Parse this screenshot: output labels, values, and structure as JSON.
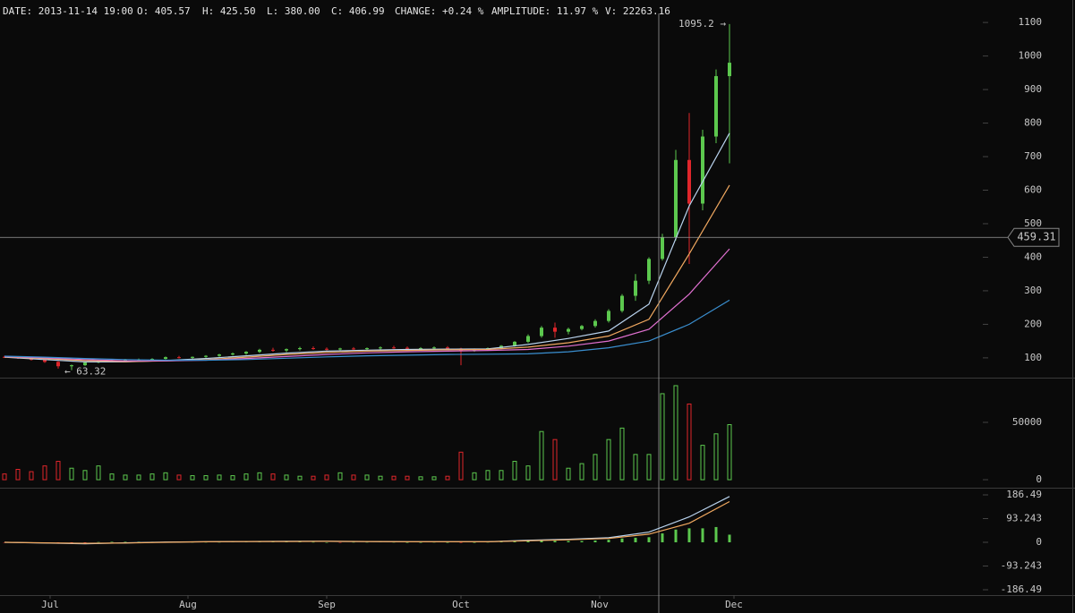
{
  "header": {
    "fields": [
      "DATE: 2013-11-14 19:00",
      "O: 405.57",
      "H: 425.50",
      "L: 380.00",
      "C: 406.99",
      "CHANGE: +0.24 %",
      "AMPLITUDE: 11.97 %",
      "V: 22263.16"
    ]
  },
  "chart_data": [
    {
      "type": "candlestick",
      "x": [
        0,
        3,
        6,
        9,
        12,
        15,
        18,
        21,
        24,
        27,
        30,
        33,
        36,
        39,
        42,
        45,
        48,
        51,
        54,
        57,
        60,
        63,
        66,
        69,
        72,
        75,
        78,
        81,
        84,
        87,
        90,
        93,
        96,
        99,
        102,
        105,
        108,
        111,
        114,
        117,
        120,
        123,
        126,
        129,
        132,
        135,
        138,
        141,
        144,
        147,
        150,
        153,
        156,
        159,
        162
      ],
      "open": [
        103,
        102,
        99,
        94,
        88,
        75,
        78,
        86,
        91,
        93,
        94,
        95,
        97,
        102,
        100,
        103,
        106,
        110,
        113,
        118,
        124,
        122,
        126,
        129,
        127,
        125,
        128,
        126,
        129,
        131,
        130,
        127,
        129,
        131,
        128,
        122,
        125,
        129,
        136,
        148,
        165,
        190,
        178,
        186,
        195,
        210,
        240,
        285,
        330,
        395,
        460,
        690,
        560,
        760,
        940
      ],
      "high": [
        106,
        104,
        101,
        96,
        90,
        80,
        88,
        94,
        96,
        97,
        98,
        99,
        104,
        106,
        104,
        108,
        112,
        116,
        120,
        127,
        130,
        128,
        133,
        134,
        131,
        130,
        132,
        131,
        134,
        136,
        134,
        132,
        134,
        135,
        130,
        128,
        131,
        138,
        150,
        170,
        195,
        205,
        190,
        198,
        215,
        245,
        290,
        350,
        400,
        470,
        720,
        830,
        780,
        960,
        1095.2
      ],
      "low": [
        100,
        97,
        92,
        85,
        68,
        63.32,
        76,
        84,
        88,
        89,
        90,
        92,
        95,
        98,
        96,
        100,
        103,
        107,
        109,
        114,
        118,
        117,
        122,
        124,
        122,
        120,
        124,
        122,
        125,
        127,
        124,
        122,
        124,
        126,
        78,
        118,
        121,
        126,
        133,
        144,
        160,
        160,
        170,
        182,
        190,
        205,
        235,
        270,
        320,
        390,
        450,
        380,
        540,
        740,
        680
      ],
      "close": [
        102,
        99,
        94,
        88,
        75,
        78,
        86,
        91,
        93,
        94,
        95,
        97,
        102,
        100,
        103,
        106,
        110,
        113,
        118,
        124,
        122,
        126,
        129,
        127,
        125,
        128,
        126,
        129,
        131,
        130,
        127,
        129,
        131,
        128,
        122,
        125,
        129,
        136,
        148,
        165,
        190,
        178,
        186,
        195,
        210,
        240,
        285,
        330,
        395,
        460,
        690,
        560,
        760,
        940,
        980
      ],
      "up_color": "#5cc84e",
      "down_color": "#e0262b",
      "series": [
        {
          "color": "#b9d3ee",
          "x": [
            0,
            9,
            18,
            27,
            36,
            45,
            54,
            63,
            72,
            81,
            90,
            99,
            108,
            117,
            126,
            135,
            144,
            153,
            162
          ],
          "values": [
            102,
            95,
            88,
            88,
            92,
            98,
            106,
            114,
            120,
            123,
            125,
            126,
            127,
            140,
            158,
            180,
            260,
            553,
            770
          ]
        },
        {
          "color": "#f0a860",
          "x": [
            0,
            9,
            18,
            27,
            36,
            45,
            54,
            63,
            72,
            81,
            90,
            99,
            108,
            117,
            126,
            135,
            144,
            153,
            162
          ],
          "values": [
            103,
            98,
            92,
            89,
            91,
            95,
            102,
            110,
            116,
            120,
            122,
            124,
            125,
            132,
            145,
            165,
            215,
            410,
            615
          ]
        },
        {
          "color": "#e070d0",
          "x": [
            0,
            9,
            18,
            27,
            36,
            45,
            54,
            63,
            72,
            81,
            90,
            99,
            108,
            117,
            126,
            135,
            144,
            153,
            162
          ],
          "values": [
            104,
            100,
            95,
            91,
            91,
            93,
            98,
            104,
            110,
            115,
            118,
            120,
            122,
            125,
            135,
            150,
            185,
            290,
            425
          ]
        },
        {
          "color": "#3a8fd0",
          "x": [
            0,
            9,
            18,
            27,
            36,
            45,
            54,
            63,
            72,
            81,
            90,
            99,
            108,
            117,
            126,
            135,
            144,
            153,
            162
          ],
          "values": [
            105,
            102,
            98,
            95,
            93,
            93,
            95,
            99,
            103,
            106,
            108,
            110,
            111,
            112,
            118,
            130,
            150,
            200,
            272
          ]
        }
      ],
      "max_label": "1095.2 →",
      "min_label": "← 63.32",
      "crosshair": {
        "x": 146.2,
        "y": 459.31
      },
      "xlim": [
        -1,
        219
      ],
      "ylim": [
        41,
        1167
      ],
      "yticks": [
        100,
        200,
        300,
        400,
        500,
        600,
        700,
        800,
        900,
        1000,
        1100
      ]
    },
    {
      "type": "bar",
      "x": [
        0,
        3,
        6,
        9,
        12,
        15,
        18,
        21,
        24,
        27,
        30,
        33,
        36,
        39,
        42,
        45,
        48,
        51,
        54,
        57,
        60,
        63,
        66,
        69,
        72,
        75,
        78,
        81,
        84,
        87,
        90,
        93,
        96,
        99,
        102,
        105,
        108,
        111,
        114,
        117,
        120,
        123,
        126,
        129,
        132,
        135,
        138,
        141,
        144,
        147,
        150,
        153,
        156,
        159,
        162
      ],
      "values": [
        5000,
        9000,
        7000,
        12000,
        16000,
        10000,
        8000,
        12000,
        5000,
        4000,
        4000,
        5000,
        6000,
        4000,
        3500,
        3500,
        4000,
        3500,
        5000,
        6000,
        5000,
        4000,
        3000,
        3000,
        4000,
        6000,
        4000,
        4000,
        3000,
        3000,
        3000,
        2500,
        2500,
        3000,
        24000,
        6000,
        8000,
        8000,
        16000,
        12000,
        42000,
        35000,
        10000,
        14000,
        22000,
        35000,
        45000,
        22000,
        22000,
        75000,
        82000,
        66000,
        30000,
        40000,
        48000
      ],
      "up_color": "#5cc84e",
      "down_color": "#e0262b",
      "xlim": [
        -1,
        219
      ],
      "ylim": [
        -7000,
        89000
      ],
      "yticks": [
        0,
        50000
      ]
    },
    {
      "type": "macd",
      "x": [
        0,
        3,
        6,
        9,
        12,
        15,
        18,
        21,
        24,
        27,
        30,
        33,
        36,
        39,
        42,
        45,
        48,
        51,
        54,
        57,
        60,
        63,
        66,
        69,
        72,
        75,
        78,
        81,
        84,
        87,
        90,
        93,
        96,
        99,
        102,
        105,
        108,
        111,
        114,
        117,
        120,
        123,
        126,
        129,
        132,
        135,
        138,
        141,
        144,
        147,
        150,
        153,
        156,
        159,
        162
      ],
      "values": [
        -1,
        -2,
        -2,
        -3,
        -4,
        -3,
        -1,
        1,
        2,
        2,
        2,
        2,
        2,
        1,
        1,
        1,
        1,
        2,
        2,
        3,
        2,
        2,
        2,
        1,
        0,
        -1,
        1,
        1,
        2,
        1,
        0,
        0,
        1,
        0,
        -2,
        0,
        1,
        2,
        4,
        6,
        9,
        6,
        5,
        5,
        7,
        10,
        15,
        18,
        20,
        35,
        50,
        55,
        55,
        60,
        30
      ],
      "up_color": "#5cc84e",
      "down_color": "#e0262b",
      "series": [
        {
          "color": "#b9d3ee",
          "x": [
            0,
            9,
            18,
            27,
            36,
            45,
            54,
            63,
            72,
            81,
            90,
            99,
            108,
            117,
            126,
            135,
            144,
            153,
            162
          ],
          "values": [
            0,
            -3,
            -6,
            -2,
            1,
            2,
            3,
            4,
            4,
            3,
            2,
            2,
            2,
            8,
            12,
            18,
            40,
            100,
            180
          ]
        },
        {
          "color": "#f0a860",
          "x": [
            0,
            9,
            18,
            27,
            36,
            45,
            54,
            63,
            72,
            81,
            90,
            99,
            108,
            117,
            126,
            135,
            144,
            153,
            162
          ],
          "values": [
            0,
            -2,
            -4,
            -3,
            0,
            2,
            3,
            3,
            4,
            3,
            2,
            2,
            2,
            6,
            10,
            15,
            32,
            75,
            160
          ]
        }
      ],
      "xlim": [
        -1,
        219
      ],
      "ylim": [
        -207.6,
        214.6
      ],
      "yticks": [
        186.49,
        93.243,
        0,
        -93.243,
        -186.49
      ],
      "xticks": [
        {
          "value": 10.2,
          "label": "Jul"
        },
        {
          "value": 41,
          "label": "Aug"
        },
        {
          "value": 72,
          "label": "Sep"
        },
        {
          "value": 102,
          "label": "Oct"
        },
        {
          "value": 133,
          "label": "Nov"
        },
        {
          "value": 163,
          "label": "Dec"
        }
      ]
    }
  ]
}
